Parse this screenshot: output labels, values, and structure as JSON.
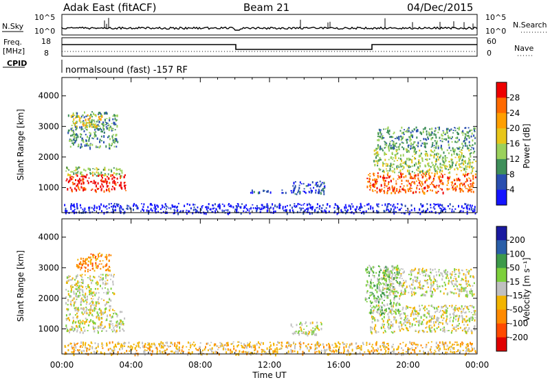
{
  "header": {
    "station": "Adak East (fitACF)",
    "beam": "Beam 21",
    "date": "04/Dec/2015"
  },
  "strips": {
    "nsky": {
      "label": "N.Sky",
      "ticks": [
        "10^5",
        "10^0"
      ],
      "right_label": "N.Search",
      "right_ticks": [
        "10^5",
        "10^0"
      ]
    },
    "freq": {
      "label_line1": "Freq.",
      "label_line2": "[MHz]",
      "ticks": [
        "18",
        "8"
      ],
      "right_label": "Nave",
      "right_ticks": [
        "60",
        "0"
      ]
    },
    "cpid": {
      "label": "CPID",
      "text": "normalsound (fast) -157 RF"
    }
  },
  "power_colorbar": {
    "label": "Power [dB]",
    "ticks": [
      "28",
      "24",
      "20",
      "16",
      "12",
      "8",
      "4"
    ],
    "colors": [
      "#ee0000",
      "#ff6a00",
      "#ff9f00",
      "#e8c61a",
      "#9bd15c",
      "#3f8f5a",
      "#2a4fb0",
      "#1414ff"
    ]
  },
  "velocity_colorbar": {
    "label": "Velocity [m s⁻¹]",
    "ticks": [
      "200",
      "100",
      "50",
      "15",
      "-15",
      "-50",
      "-100",
      "-200"
    ],
    "colors": [
      "#1a1aa0",
      "#2a5fa8",
      "#3d9a4a",
      "#7dd03c",
      "#c0c0c0",
      "#f2b400",
      "#ff8a00",
      "#ff4a00",
      "#e00000"
    ]
  },
  "chart_data": [
    {
      "type": "heatmap",
      "panel": "power",
      "ylabel": "Slant Range [km]",
      "y_ticks": [
        1000,
        2000,
        3000,
        4000
      ],
      "ylim": [
        180,
        4600
      ],
      "xlim": [
        0,
        24
      ],
      "patches": [
        {
          "t0": 0.2,
          "t1": 3.7,
          "r0": 900,
          "r1": 1450,
          "level": 0
        },
        {
          "t0": 0.2,
          "t1": 3.5,
          "r0": 1400,
          "r1": 1700,
          "level": 4
        },
        {
          "t0": 0.3,
          "t1": 3.2,
          "r0": 2300,
          "r1": 3500,
          "level": 5
        },
        {
          "t0": 0.5,
          "t1": 2.3,
          "r0": 3000,
          "r1": 3400,
          "level": 3
        },
        {
          "t0": 13.2,
          "t1": 15.2,
          "r0": 800,
          "r1": 1250,
          "level": 6
        },
        {
          "t0": 10.8,
          "t1": 13.0,
          "r0": 850,
          "r1": 950,
          "level": 6
        },
        {
          "t0": 17.6,
          "t1": 23.9,
          "r0": 850,
          "r1": 1500,
          "level": 1
        },
        {
          "t0": 18.0,
          "t1": 23.9,
          "r0": 1500,
          "r1": 2300,
          "level": 4
        },
        {
          "t0": 18.2,
          "t1": 23.9,
          "r0": 2300,
          "r1": 3000,
          "level": 5
        },
        {
          "t0": 0.1,
          "t1": 23.9,
          "r0": 180,
          "r1": 500,
          "level": 7
        }
      ]
    },
    {
      "type": "heatmap",
      "panel": "velocity",
      "ylabel": "Slant Range [km]",
      "xlabel": "Time UT",
      "x_ticks": [
        "00:00",
        "04:00",
        "08:00",
        "12:00",
        "16:00",
        "20:00",
        "00:00"
      ],
      "y_ticks": [
        1000,
        2000,
        3000,
        4000
      ],
      "ylim": [
        180,
        4600
      ],
      "xlim": [
        0,
        24
      ],
      "patches": [
        {
          "t0": 0.2,
          "t1": 3.6,
          "r0": 900,
          "r1": 1600,
          "level": 4
        },
        {
          "t0": 0.2,
          "t1": 3.0,
          "r0": 1600,
          "r1": 2800,
          "level": 4
        },
        {
          "t0": 0.8,
          "t1": 2.8,
          "r0": 2900,
          "r1": 3500,
          "level": 6
        },
        {
          "t0": 13.2,
          "t1": 15.0,
          "r0": 800,
          "r1": 1250,
          "level": 4
        },
        {
          "t0": 17.8,
          "t1": 23.9,
          "r0": 900,
          "r1": 1800,
          "level": 4
        },
        {
          "t0": 18.5,
          "t1": 23.8,
          "r0": 2100,
          "r1": 3000,
          "level": 4
        },
        {
          "t0": 17.5,
          "t1": 19.5,
          "r0": 1500,
          "r1": 3100,
          "level": 3
        },
        {
          "t0": 0.1,
          "t1": 23.9,
          "r0": 180,
          "r1": 600,
          "level": 5
        }
      ]
    }
  ]
}
